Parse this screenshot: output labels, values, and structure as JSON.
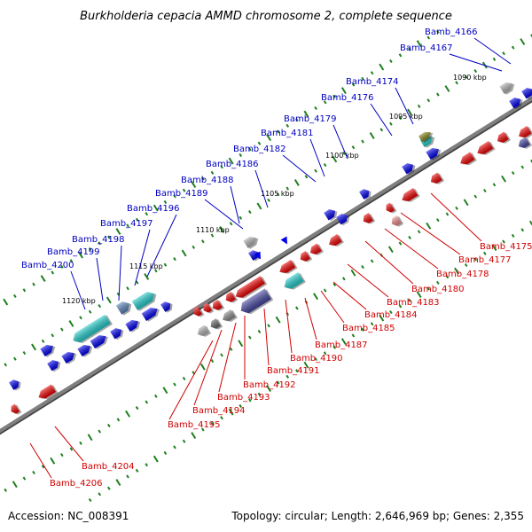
{
  "title": "Burkholderia cepacia AMMD chromosome 2, complete sequence",
  "footer": {
    "accession": "Accession: NC_008391",
    "summary": "Topology: circular; Length: 2,646,969 bp; Genes: 2,355"
  },
  "scale_labels": [
    "1090 kbp",
    "1095 kbp",
    "1100 kbp",
    "1105 kbp",
    "1110 kbp",
    "1115 kbp",
    "1120 kbp"
  ],
  "colors": {
    "backbone": "#7f7f7f",
    "forward_label": "#0000c0",
    "reverse_label": "#d00000",
    "blue_gene": "#0000ee",
    "red_gene": "#ee0000",
    "cyan_gene": "#22cccc",
    "navy_gene": "#4444a0",
    "olive_gene": "#8a8a20",
    "gray_gene": "#b0b0b0",
    "tick": "#1f7f1f"
  },
  "forward_labels": [
    "Bamb_4166",
    "Bamb_4167",
    "Bamb_4174",
    "Bamb_4176",
    "Bamb_4179",
    "Bamb_4181",
    "Bamb_4182",
    "Bamb_4186",
    "Bamb_4188",
    "Bamb_4189",
    "Bamb_4196",
    "Bamb_4197",
    "Bamb_4198",
    "Bamb_4199",
    "Bamb_4200"
  ],
  "reverse_labels": [
    "Bamb_4175",
    "Bamb_4177",
    "Bamb_4178",
    "Bamb_4180",
    "Bamb_4183",
    "Bamb_4184",
    "Bamb_4185",
    "Bamb_4187",
    "Bamb_4190",
    "Bamb_4191",
    "Bamb_4192",
    "Bamb_4193",
    "Bamb_4194",
    "Bamb_4195",
    "Bamb_4204",
    "Bamb_4206"
  ]
}
